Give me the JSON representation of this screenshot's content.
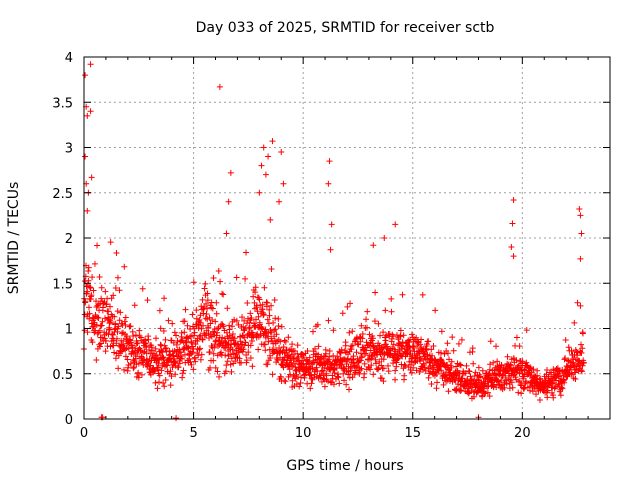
{
  "chart_data": {
    "type": "scatter",
    "title": "Day 033 of 2025, SRMTID for receiver sctb",
    "xlabel": "GPS time / hours",
    "ylabel": "SRMTID / TECUs",
    "xlim": [
      0,
      24
    ],
    "ylim": [
      0,
      4
    ],
    "x_ticks": [
      0,
      5,
      10,
      15,
      20
    ],
    "x_tick_labels": [
      "0",
      "5",
      "10",
      "15",
      "20"
    ],
    "y_ticks": [
      0,
      0.5,
      1,
      1.5,
      2,
      2.5,
      3,
      3.5,
      4
    ],
    "y_tick_labels": [
      "0",
      "0.5",
      "1",
      "1.5",
      "2",
      "2.5",
      "3",
      "3.5",
      "4"
    ],
    "grid": true,
    "marker": "+",
    "series": [
      {
        "name": "SRMTID",
        "color": "#ff0000",
        "x_range": [
          0,
          22.8
        ],
        "note": "approximately 2000 points; profile gives typical level (hours, TECU) and envelope of scatter",
        "profile": [
          [
            0.0,
            1.4
          ],
          [
            0.5,
            1.1
          ],
          [
            1.0,
            1.1
          ],
          [
            1.5,
            1.0
          ],
          [
            2.0,
            0.8
          ],
          [
            3.0,
            0.65
          ],
          [
            4.0,
            0.65
          ],
          [
            5.0,
            0.8
          ],
          [
            5.5,
            1.1
          ],
          [
            6.0,
            0.85
          ],
          [
            7.0,
            0.8
          ],
          [
            8.0,
            1.1
          ],
          [
            9.0,
            0.7
          ],
          [
            10.0,
            0.55
          ],
          [
            11.0,
            0.6
          ],
          [
            12.0,
            0.6
          ],
          [
            13.0,
            0.75
          ],
          [
            14.0,
            0.75
          ],
          [
            15.0,
            0.7
          ],
          [
            16.0,
            0.6
          ],
          [
            17.0,
            0.45
          ],
          [
            18.0,
            0.35
          ],
          [
            19.0,
            0.5
          ],
          [
            20.0,
            0.5
          ],
          [
            21.0,
            0.35
          ],
          [
            22.0,
            0.5
          ],
          [
            22.8,
            0.8
          ]
        ],
        "outliers": [
          [
            0.05,
            3.8
          ],
          [
            0.1,
            3.45
          ],
          [
            0.15,
            3.35
          ],
          [
            0.3,
            3.92
          ],
          [
            0.3,
            3.4
          ],
          [
            0.05,
            2.9
          ],
          [
            0.1,
            2.6
          ],
          [
            0.2,
            2.5
          ],
          [
            0.35,
            2.67
          ],
          [
            0.15,
            2.3
          ],
          [
            6.2,
            3.67
          ],
          [
            6.7,
            2.72
          ],
          [
            6.6,
            2.4
          ],
          [
            6.5,
            2.05
          ],
          [
            8.2,
            3.0
          ],
          [
            8.4,
            2.9
          ],
          [
            8.6,
            3.07
          ],
          [
            8.1,
            2.8
          ],
          [
            9.0,
            2.95
          ],
          [
            8.3,
            2.7
          ],
          [
            9.1,
            2.6
          ],
          [
            8.9,
            2.4
          ],
          [
            8.0,
            2.5
          ],
          [
            8.5,
            2.2
          ],
          [
            11.2,
            2.85
          ],
          [
            11.15,
            2.6
          ],
          [
            11.3,
            2.15
          ],
          [
            11.25,
            1.87
          ],
          [
            13.2,
            1.92
          ],
          [
            13.7,
            2.0
          ],
          [
            14.2,
            2.15
          ],
          [
            19.6,
            2.42
          ],
          [
            19.55,
            2.16
          ],
          [
            19.5,
            1.9
          ],
          [
            19.6,
            1.8
          ],
          [
            22.6,
            2.32
          ],
          [
            22.65,
            2.25
          ],
          [
            22.7,
            2.05
          ],
          [
            22.65,
            1.77
          ],
          [
            0.8,
            0.02
          ],
          [
            0.85,
            0.02
          ],
          [
            4.2,
            0.01
          ],
          [
            18.0,
            0.02
          ]
        ]
      }
    ]
  }
}
